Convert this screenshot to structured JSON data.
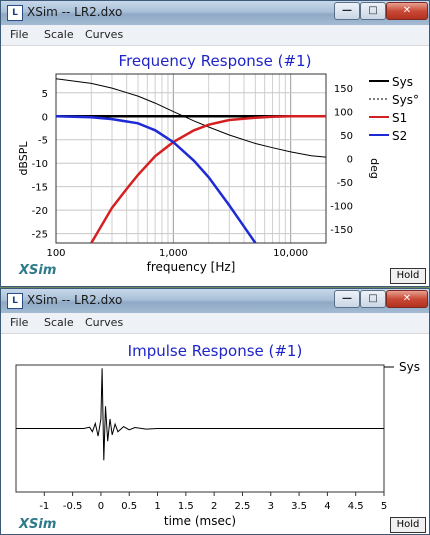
{
  "windows": [
    {
      "title": "XSim -- LR2.dxo",
      "icon": "app-icon",
      "menu": [
        "File",
        "Scale",
        "Curves"
      ],
      "plot_title": "Frequency Response (#1)",
      "brand": "XSim",
      "hold_label": "Hold"
    },
    {
      "title": "XSim -- LR2.dxo",
      "icon": "app-icon",
      "menu": [
        "File",
        "Scale",
        "Curves"
      ],
      "plot_title": "Impulse Response (#1)",
      "brand": "XSim",
      "hold_label": "Hold"
    }
  ],
  "chart_data": [
    {
      "type": "line",
      "title": "Frequency Response (#1)",
      "xlabel": "frequency [Hz]",
      "ylabel": "dBSPL",
      "y2label": "deg",
      "x_scale": "log",
      "xlim": [
        100,
        20000
      ],
      "ylim": [
        -27,
        9
      ],
      "y2lim": [
        -180,
        180
      ],
      "x_ticks": [
        100,
        1000,
        10000
      ],
      "x_tick_labels": [
        "100",
        "1,000",
        "10,000"
      ],
      "y_ticks": [
        5,
        0,
        -5,
        -10,
        -15,
        -20,
        -25
      ],
      "y2_ticks": [
        150,
        100,
        50,
        0,
        -50,
        -100,
        -150
      ],
      "grid": true,
      "legend_position": "right",
      "series": [
        {
          "name": "Sys",
          "axis": "left",
          "style": "solid",
          "color": "#000000",
          "x": [
            100,
            20000
          ],
          "y": [
            0,
            0
          ]
        },
        {
          "name": "Sys°",
          "axis": "right",
          "style": "solid-thin",
          "color": "#000000",
          "x": [
            100,
            200,
            300,
            500,
            700,
            1000,
            1500,
            2000,
            3000,
            5000,
            7000,
            10000,
            15000,
            20000
          ],
          "y": [
            170,
            160,
            150,
            133,
            118,
            100,
            80,
            67,
            50,
            32,
            23,
            14,
            6,
            3
          ]
        },
        {
          "name": "S1",
          "axis": "left",
          "style": "solid",
          "color": "#d42020",
          "x": [
            200,
            300,
            400,
            500,
            700,
            1000,
            1500,
            2000,
            3000,
            5000,
            7000,
            10000,
            15000,
            20000
          ],
          "y": [
            -27,
            -19.5,
            -15.5,
            -12.5,
            -8.5,
            -5.5,
            -3,
            -1.8,
            -0.8,
            -0.3,
            -0.1,
            0,
            0,
            0
          ]
        },
        {
          "name": "S2",
          "axis": "left",
          "style": "solid",
          "color": "#1e2ad6",
          "x": [
            100,
            200,
            300,
            500,
            700,
            1000,
            1500,
            2000,
            3000,
            4000,
            5000
          ],
          "y": [
            0,
            -0.2,
            -0.6,
            -1.5,
            -3,
            -5.5,
            -9.5,
            -13,
            -19,
            -23.5,
            -27
          ]
        }
      ]
    },
    {
      "type": "line",
      "title": "Impulse Response (#1)",
      "xlabel": "time (msec)",
      "ylabel": "",
      "xlim": [
        -1.5,
        5
      ],
      "x_ticks": [
        -1,
        -0.5,
        0,
        0.5,
        1,
        1.5,
        2,
        2.5,
        3,
        3.5,
        4,
        4.5,
        5
      ],
      "x_tick_labels": [
        "-1",
        "-0.5",
        "0",
        "0.5",
        "1",
        "1.5",
        "2",
        "2.5",
        "3",
        "3.5",
        "4",
        "4.5",
        "5"
      ],
      "ylim": [
        -1,
        1
      ],
      "legend_position": "right",
      "series": [
        {
          "name": "Sys",
          "color": "#000000",
          "x": [
            -1.5,
            -0.3,
            -0.2,
            -0.15,
            -0.1,
            -0.05,
            0,
            0.02,
            0.05,
            0.08,
            0.12,
            0.16,
            0.2,
            0.25,
            0.3,
            0.4,
            0.5,
            0.6,
            0.8,
            1.0,
            5
          ],
          "y": [
            0,
            0,
            0.02,
            -0.05,
            0.08,
            -0.12,
            0.15,
            0.95,
            -0.5,
            0.35,
            -0.2,
            0.15,
            -0.1,
            0.07,
            -0.05,
            0.03,
            -0.02,
            0.015,
            -0.01,
            0,
            0
          ]
        }
      ]
    }
  ]
}
